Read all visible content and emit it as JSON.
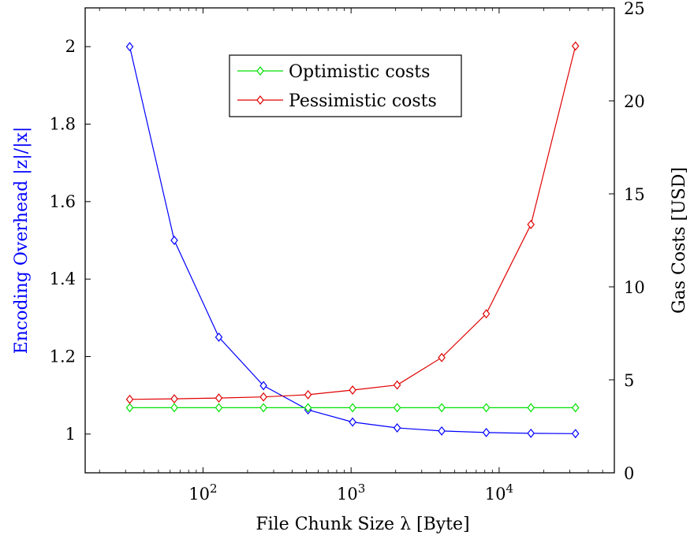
{
  "chart_data": {
    "type": "line",
    "xlabel": "File Chunk Size λ [Byte]",
    "ylabel_left": "Encoding Overhead |z|/|x|",
    "ylabel_right": "Gas Costs [USD]",
    "x_scale": "log",
    "x": [
      32,
      64,
      128,
      256,
      512,
      1024,
      2048,
      4096,
      8192,
      16384,
      32768
    ],
    "x_ticks": [
      100,
      1000,
      10000
    ],
    "x_tick_labels": [
      {
        "base": "10",
        "exp": "2"
      },
      {
        "base": "10",
        "exp": "3"
      },
      {
        "base": "10",
        "exp": "4"
      }
    ],
    "xlim": [
      16,
      60000
    ],
    "ylim_left": [
      0.9,
      2.1
    ],
    "y_ticks_left": [
      1,
      1.2,
      1.4,
      1.6,
      1.8,
      2
    ],
    "y_tick_labels_left": [
      "1",
      "1.2",
      "1.4",
      "1.6",
      "1.8",
      "2"
    ],
    "ylim_right": [
      0,
      25
    ],
    "y_ticks_right": [
      0,
      5,
      10,
      15,
      20,
      25
    ],
    "y_tick_labels_right": [
      "0",
      "5",
      "10",
      "15",
      "20",
      "25"
    ],
    "grid": false,
    "legend_position": "top-center",
    "series": [
      {
        "name": "",
        "axis": "left",
        "color": "#0000ff",
        "marker": "diamond",
        "values": [
          2.0,
          1.5,
          1.25,
          1.125,
          1.0625,
          1.031,
          1.016,
          1.008,
          1.004,
          1.002,
          1.001
        ]
      },
      {
        "name": "Optimistic costs",
        "axis": "right",
        "color": "#00e000",
        "marker": "diamond",
        "values": [
          3.5,
          3.5,
          3.5,
          3.5,
          3.5,
          3.5,
          3.5,
          3.5,
          3.5,
          3.5,
          3.5
        ]
      },
      {
        "name": "Pessimistic costs",
        "axis": "right",
        "color": "#e00000",
        "marker": "diamond",
        "values": [
          3.95,
          3.98,
          4.02,
          4.08,
          4.2,
          4.45,
          4.72,
          6.2,
          8.55,
          13.35,
          22.95
        ]
      }
    ]
  }
}
